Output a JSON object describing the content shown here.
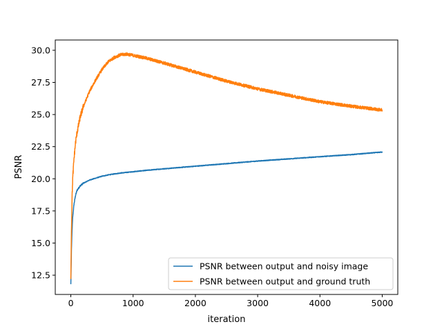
{
  "chart_data": {
    "type": "line",
    "title": "",
    "xlabel": "iteration",
    "ylabel": "PSNR",
    "xlim": [
      -250,
      5250
    ],
    "ylim": [
      11.0,
      30.8
    ],
    "xticks": [
      0,
      1000,
      2000,
      3000,
      4000,
      5000
    ],
    "xtick_labels": [
      "0",
      "1000",
      "2000",
      "3000",
      "4000",
      "5000"
    ],
    "yticks": [
      12.5,
      15.0,
      17.5,
      20.0,
      22.5,
      25.0,
      27.5,
      30.0
    ],
    "ytick_labels": [
      "12.5",
      "15.0",
      "17.5",
      "20.0",
      "22.5",
      "25.0",
      "27.5",
      "30.0"
    ],
    "grid": false,
    "legend_position": "lower-right",
    "series": [
      {
        "name": "PSNR between output and noisy image",
        "color": "#1f77b4",
        "x": [
          0,
          10,
          20,
          30,
          50,
          75,
          100,
          150,
          200,
          300,
          400,
          500,
          600,
          700,
          800,
          1000,
          1200,
          1500,
          2000,
          2500,
          3000,
          3500,
          4000,
          4500,
          5000
        ],
        "y": [
          11.8,
          14.5,
          16.0,
          17.0,
          18.0,
          18.7,
          19.1,
          19.45,
          19.65,
          19.9,
          20.05,
          20.2,
          20.3,
          20.38,
          20.45,
          20.55,
          20.65,
          20.78,
          20.98,
          21.18,
          21.38,
          21.55,
          21.72,
          21.88,
          22.08
        ],
        "noise": 0.03
      },
      {
        "name": "PSNR between output and ground truth",
        "color": "#ff7f0e",
        "x": [
          0,
          10,
          20,
          30,
          50,
          75,
          100,
          150,
          200,
          250,
          300,
          400,
          500,
          600,
          700,
          800,
          900,
          1000,
          1200,
          1500,
          2000,
          2500,
          3000,
          3500,
          4000,
          4500,
          5000
        ],
        "y": [
          12.2,
          16.0,
          18.5,
          20.0,
          21.5,
          22.8,
          23.6,
          24.8,
          25.6,
          26.2,
          26.8,
          27.7,
          28.5,
          29.1,
          29.45,
          29.65,
          29.7,
          29.6,
          29.4,
          29.0,
          28.3,
          27.6,
          27.0,
          26.5,
          26.0,
          25.65,
          25.35
        ],
        "noise": 0.12
      }
    ]
  }
}
